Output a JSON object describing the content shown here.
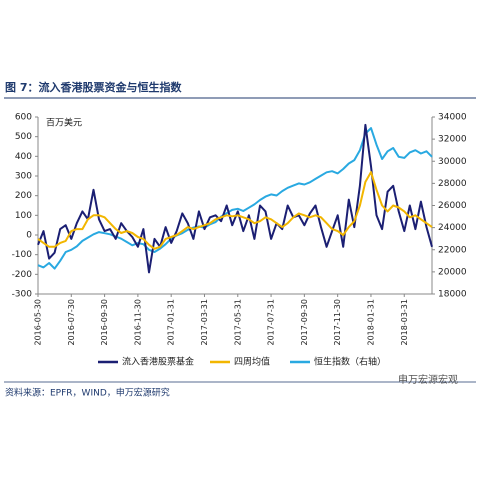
{
  "chart_data": {
    "type": "line",
    "title": "图 7：流入香港股票资金与恒生指数",
    "y_label": "百万美元",
    "source": "资料来源：EPFR，WIND，申万宏源研究",
    "watermark": "申万宏源宏观",
    "categories": [
      "2016-05-30",
      null,
      null,
      null,
      null,
      null,
      "2016-07-30",
      null,
      null,
      null,
      null,
      null,
      "2016-09-30",
      null,
      null,
      null,
      null,
      null,
      "2016-11-30",
      null,
      null,
      null,
      null,
      null,
      "2017-01-31",
      null,
      null,
      null,
      null,
      null,
      "2017-03-31",
      null,
      null,
      null,
      null,
      null,
      "2017-05-31",
      null,
      null,
      null,
      null,
      null,
      "2017-07-31",
      null,
      null,
      null,
      null,
      null,
      "2017-09-30",
      null,
      null,
      null,
      null,
      null,
      "2017-11-30",
      null,
      null,
      null,
      null,
      null,
      "2018-01-31",
      null,
      null,
      null,
      null,
      null,
      "2018-03-31",
      null,
      null,
      null,
      null,
      null
    ],
    "ylim": [
      -300,
      600
    ],
    "yticks": [
      -300,
      -200,
      -100,
      0,
      100,
      200,
      300,
      400,
      500,
      600
    ],
    "y2lim": [
      18000,
      34000
    ],
    "y2ticks": [
      18000,
      20000,
      22000,
      24000,
      26000,
      28000,
      30000,
      32000,
      34000
    ],
    "legend": "bottom",
    "grid": false,
    "series": [
      {
        "name": "流入香港股票基金",
        "color": "#1b1f73",
        "values": [
          -50,
          20,
          -120,
          -90,
          30,
          50,
          -20,
          60,
          120,
          80,
          230,
          80,
          20,
          30,
          -20,
          60,
          20,
          -10,
          -60,
          30,
          -190,
          -20,
          -60,
          40,
          -40,
          20,
          110,
          60,
          -20,
          120,
          30,
          90,
          100,
          70,
          150,
          50,
          120,
          20,
          100,
          -20,
          150,
          120,
          -20,
          60,
          30,
          150,
          90,
          100,
          50,
          110,
          150,
          40,
          -60,
          20,
          100,
          -60,
          180,
          40,
          250,
          560,
          350,
          100,
          30,
          220,
          250,
          120,
          20,
          150,
          30,
          170,
          40,
          -60
        ]
      },
      {
        "name": "四周均值",
        "color": "#f2b600",
        "values": [
          -20,
          -40,
          -60,
          -60,
          -40,
          -30,
          20,
          30,
          30,
          80,
          100,
          100,
          90,
          60,
          30,
          10,
          20,
          10,
          -10,
          -20,
          -50,
          -70,
          -60,
          -20,
          -10,
          0,
          20,
          40,
          30,
          40,
          50,
          60,
          80,
          90,
          100,
          95,
          100,
          90,
          80,
          60,
          70,
          90,
          80,
          60,
          40,
          60,
          90,
          110,
          100,
          90,
          100,
          90,
          60,
          30,
          20,
          0,
          40,
          70,
          150,
          270,
          320,
          230,
          150,
          120,
          150,
          140,
          120,
          90,
          100,
          80,
          60,
          40
        ]
      },
      {
        "name": "恒生指数（右轴）",
        "color": "#29a9e1",
        "axis": "y2",
        "values": [
          20600,
          20400,
          20800,
          20300,
          21000,
          21800,
          22000,
          22300,
          22800,
          23100,
          23400,
          23600,
          23500,
          23400,
          23200,
          23000,
          22700,
          22400,
          22600,
          22500,
          22000,
          21800,
          22100,
          22500,
          23000,
          23300,
          23500,
          23800,
          24000,
          24100,
          24000,
          24300,
          24500,
          25000,
          25300,
          25600,
          25700,
          25500,
          25800,
          26100,
          26500,
          26800,
          27000,
          26900,
          27300,
          27600,
          27800,
          28000,
          27900,
          28100,
          28400,
          28700,
          29000,
          29100,
          28900,
          29300,
          29800,
          30100,
          31000,
          32500,
          33000,
          31500,
          30200,
          30900,
          31200,
          30400,
          30300,
          30800,
          31000,
          30700,
          30900,
          30400
        ]
      }
    ]
  }
}
